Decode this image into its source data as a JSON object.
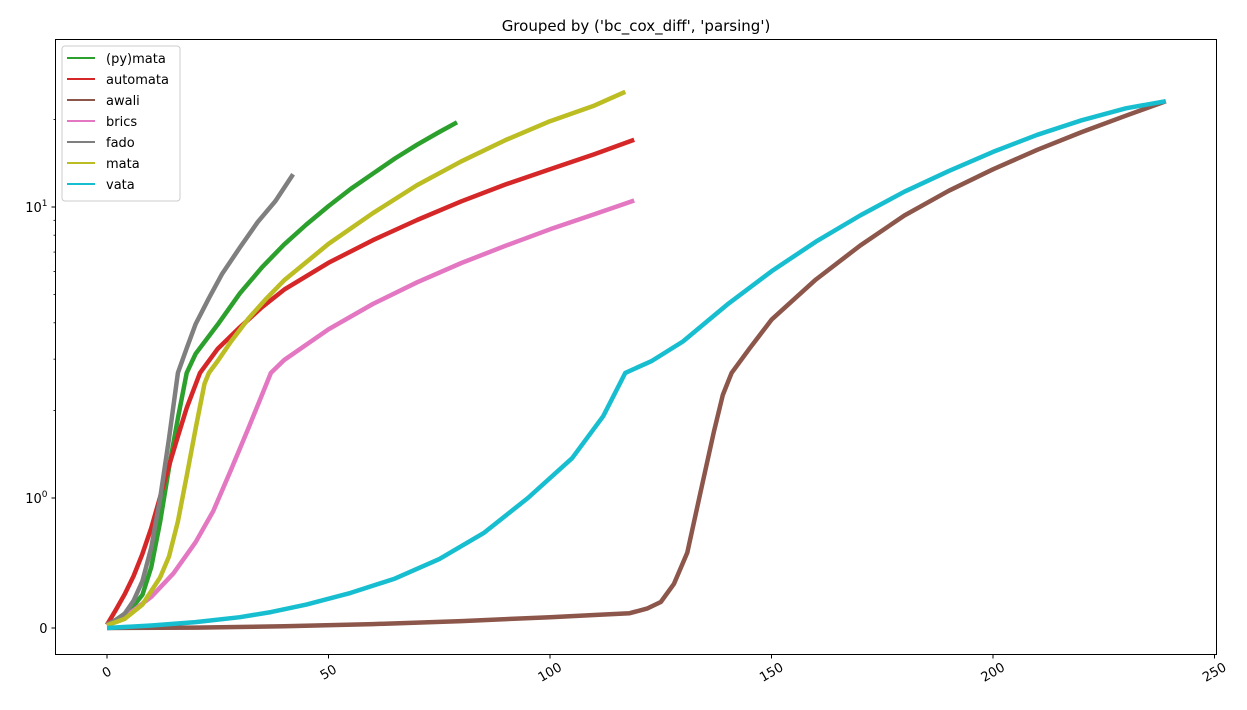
{
  "chart_data": {
    "type": "line",
    "title": "Grouped by ('bc_cox_diff', 'parsing')",
    "xlabel": "",
    "ylabel": "",
    "xlim": [
      -12,
      251
    ],
    "ylim": [
      -0.25,
      26
    ],
    "yscale": "symlog",
    "grid": false,
    "legend_position": "top-left",
    "x_ticks": [
      0,
      50,
      100,
      150,
      200,
      250
    ],
    "x_tick_labels": [
      "0",
      "50",
      "100",
      "150",
      "200",
      "250"
    ],
    "y_ticks": [
      0,
      1,
      10
    ],
    "y_tick_labels": [
      "0",
      "10^0",
      "10^1"
    ],
    "series": [
      {
        "name": "(py)mata",
        "color": "#2ca02c",
        "x": [
          0,
          2,
          4,
          6,
          8,
          10,
          12,
          14,
          16,
          18,
          20,
          25,
          30,
          35,
          40,
          45,
          50,
          55,
          60,
          65,
          70,
          75,
          79
        ],
        "y": [
          0.025,
          0.063,
          0.11,
          0.17,
          0.255,
          0.47,
          0.82,
          1.27,
          1.88,
          2.69,
          3.13,
          3.95,
          5.05,
          6.21,
          7.44,
          8.71,
          10.07,
          11.53,
          13.01,
          14.68,
          16.37,
          18.1,
          19.54
        ]
      },
      {
        "name": "automata",
        "color": "#d62728",
        "x": [
          0,
          2,
          4,
          6,
          8,
          10,
          12,
          14,
          16,
          18,
          21,
          25,
          30,
          35,
          40,
          50,
          60,
          70,
          80,
          90,
          100,
          110,
          119
        ],
        "y": [
          0.025,
          0.14,
          0.26,
          0.4,
          0.57,
          0.77,
          1.01,
          1.29,
          1.63,
          2.04,
          2.69,
          3.26,
          3.86,
          4.53,
          5.2,
          6.43,
          7.69,
          9.02,
          10.46,
          11.96,
          13.49,
          15.19,
          17.02
        ]
      },
      {
        "name": "awali",
        "color": "#8c564b",
        "x": [
          0,
          20,
          40,
          60,
          80,
          100,
          110,
          118,
          122,
          125,
          128,
          131,
          134,
          137,
          139,
          141,
          145,
          150,
          160,
          170,
          180,
          190,
          200,
          210,
          220,
          230,
          239
        ],
        "y": [
          0,
          0.0031,
          0.013,
          0.03,
          0.053,
          0.083,
          0.1,
          0.114,
          0.151,
          0.2,
          0.34,
          0.58,
          1.05,
          1.69,
          2.26,
          2.69,
          3.26,
          4.1,
          5.63,
          7.37,
          9.35,
          11.37,
          13.48,
          15.72,
          18.09,
          20.59,
          23.1
        ]
      },
      {
        "name": "brics",
        "color": "#e377c2",
        "x": [
          0,
          5,
          10,
          15,
          20,
          24,
          28,
          32,
          37,
          40,
          50,
          60,
          70,
          80,
          90,
          100,
          110,
          119
        ],
        "y": [
          0.02,
          0.11,
          0.24,
          0.42,
          0.66,
          0.9,
          1.25,
          1.75,
          2.69,
          2.98,
          3.8,
          4.64,
          5.51,
          6.42,
          7.36,
          8.38,
          9.44,
          10.53
        ]
      },
      {
        "name": "fado",
        "color": "#7f7f7f",
        "x": [
          0,
          2,
          4,
          6,
          8,
          10,
          12,
          14,
          16,
          18,
          20,
          23,
          26,
          30,
          34,
          38,
          42
        ],
        "y": [
          0.027,
          0.06,
          0.11,
          0.21,
          0.36,
          0.62,
          1.0,
          1.6,
          2.69,
          3.27,
          3.96,
          4.86,
          5.9,
          7.26,
          8.87,
          10.47,
          12.96
        ]
      },
      {
        "name": "mata",
        "color": "#bcbd22",
        "x": [
          0,
          4,
          8,
          12,
          14,
          16,
          18,
          20,
          22,
          23,
          25,
          28,
          32,
          36,
          40,
          50,
          60,
          70,
          80,
          90,
          100,
          110,
          117
        ],
        "y": [
          0.02,
          0.07,
          0.18,
          0.39,
          0.55,
          0.82,
          1.19,
          1.73,
          2.47,
          2.69,
          2.96,
          3.45,
          4.15,
          4.85,
          5.6,
          7.47,
          9.52,
          11.89,
          14.36,
          16.99,
          19.71,
          22.31,
          24.89
        ]
      },
      {
        "name": "vata",
        "color": "#17becf",
        "x": [
          0,
          10,
          20,
          30,
          37,
          45,
          55,
          65,
          75,
          85,
          95,
          105,
          112,
          117,
          123,
          130,
          140,
          150,
          160,
          170,
          180,
          190,
          200,
          210,
          220,
          230,
          239
        ],
        "y": [
          0,
          0.019,
          0.045,
          0.083,
          0.122,
          0.18,
          0.27,
          0.38,
          0.53,
          0.73,
          1.0,
          1.37,
          1.91,
          2.69,
          2.96,
          3.45,
          4.62,
          6.01,
          7.6,
          9.35,
          11.29,
          13.29,
          15.47,
          17.71,
          19.86,
          21.84,
          23.1
        ]
      }
    ]
  }
}
